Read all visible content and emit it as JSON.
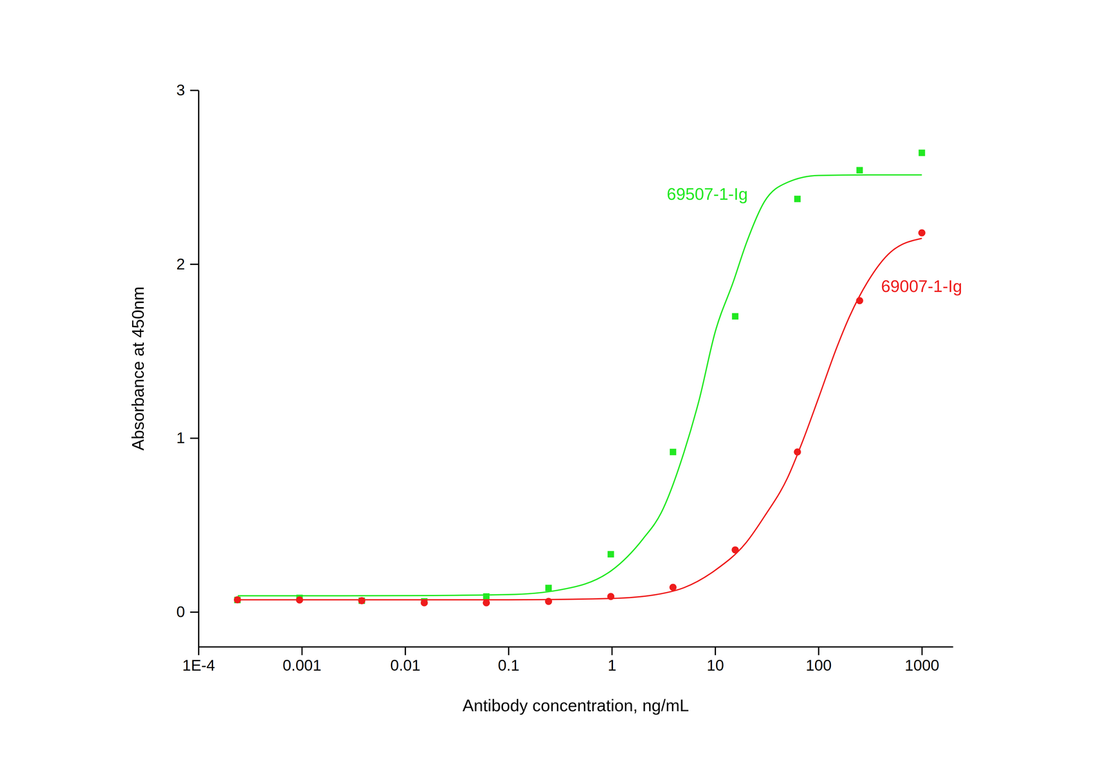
{
  "chart_data": {
    "type": "scatter",
    "x_label": "Antibody concentration, ng/mL",
    "y_label": "Absorbance at 450nm",
    "log": "x",
    "grid": false,
    "xlim": [
      0.0001,
      2000
    ],
    "xticks": [
      {
        "value": 0.0001,
        "label": "1E-4"
      },
      0.001,
      0.01,
      0.1,
      1,
      10,
      100,
      1000
    ],
    "ylim": [
      -0.2,
      3
    ],
    "yticks": [
      0,
      1,
      2,
      3
    ],
    "series": [
      {
        "type": "scatter",
        "color": "#22e822",
        "marker": "square",
        "x": [
          0.000238,
          0.00095,
          0.0038,
          0.0153,
          0.061,
          0.244,
          0.977,
          3.906,
          15.625,
          62.5,
          250,
          1000
        ],
        "values": [
          0.069,
          0.081,
          0.065,
          0.061,
          0.089,
          0.138,
          0.332,
          0.92,
          1.7,
          2.375,
          2.54,
          2.64
        ]
      },
      {
        "type": "line",
        "color": "#22e822",
        "line_style": "solid",
        "x": [
          0.00024,
          0.001,
          0.01,
          0.1,
          0.3,
          1,
          2,
          3,
          5,
          7,
          10,
          15,
          20,
          30,
          50,
          100,
          300,
          1000
        ],
        "values": [
          0.093,
          0.093,
          0.094,
          0.1,
          0.125,
          0.24,
          0.42,
          0.57,
          0.92,
          1.22,
          1.61,
          1.9,
          2.12,
          2.36,
          2.47,
          2.51,
          2.513,
          2.513
        ]
      },
      {
        "type": "scatter",
        "color": "#ee1c1c",
        "marker": "circle",
        "x": [
          0.000238,
          0.00095,
          0.0038,
          0.0153,
          0.061,
          0.244,
          0.977,
          3.906,
          15.625,
          62.5,
          250,
          1000
        ],
        "values": [
          0.07,
          0.069,
          0.065,
          0.053,
          0.053,
          0.061,
          0.089,
          0.142,
          0.357,
          0.92,
          1.79,
          2.18
        ]
      },
      {
        "type": "line",
        "color": "#ee1c1c",
        "line_style": "solid",
        "x": [
          0.00024,
          0.001,
          0.01,
          0.1,
          1,
          3,
          5,
          10,
          20,
          30,
          50,
          70,
          100,
          150,
          200,
          300,
          500,
          1000
        ],
        "values": [
          0.07,
          0.07,
          0.07,
          0.07,
          0.078,
          0.105,
          0.14,
          0.24,
          0.4,
          0.55,
          0.77,
          0.98,
          1.23,
          1.52,
          1.7,
          1.9,
          2.07,
          2.148
        ]
      }
    ],
    "annotations": [
      {
        "text": "69507-1-Ig",
        "x": 3.4,
        "y": 2.37,
        "color": "#22e822"
      },
      {
        "text": "69007-1-Ig",
        "x": 403,
        "y": 1.84,
        "color": "#ee1c1c"
      }
    ]
  }
}
